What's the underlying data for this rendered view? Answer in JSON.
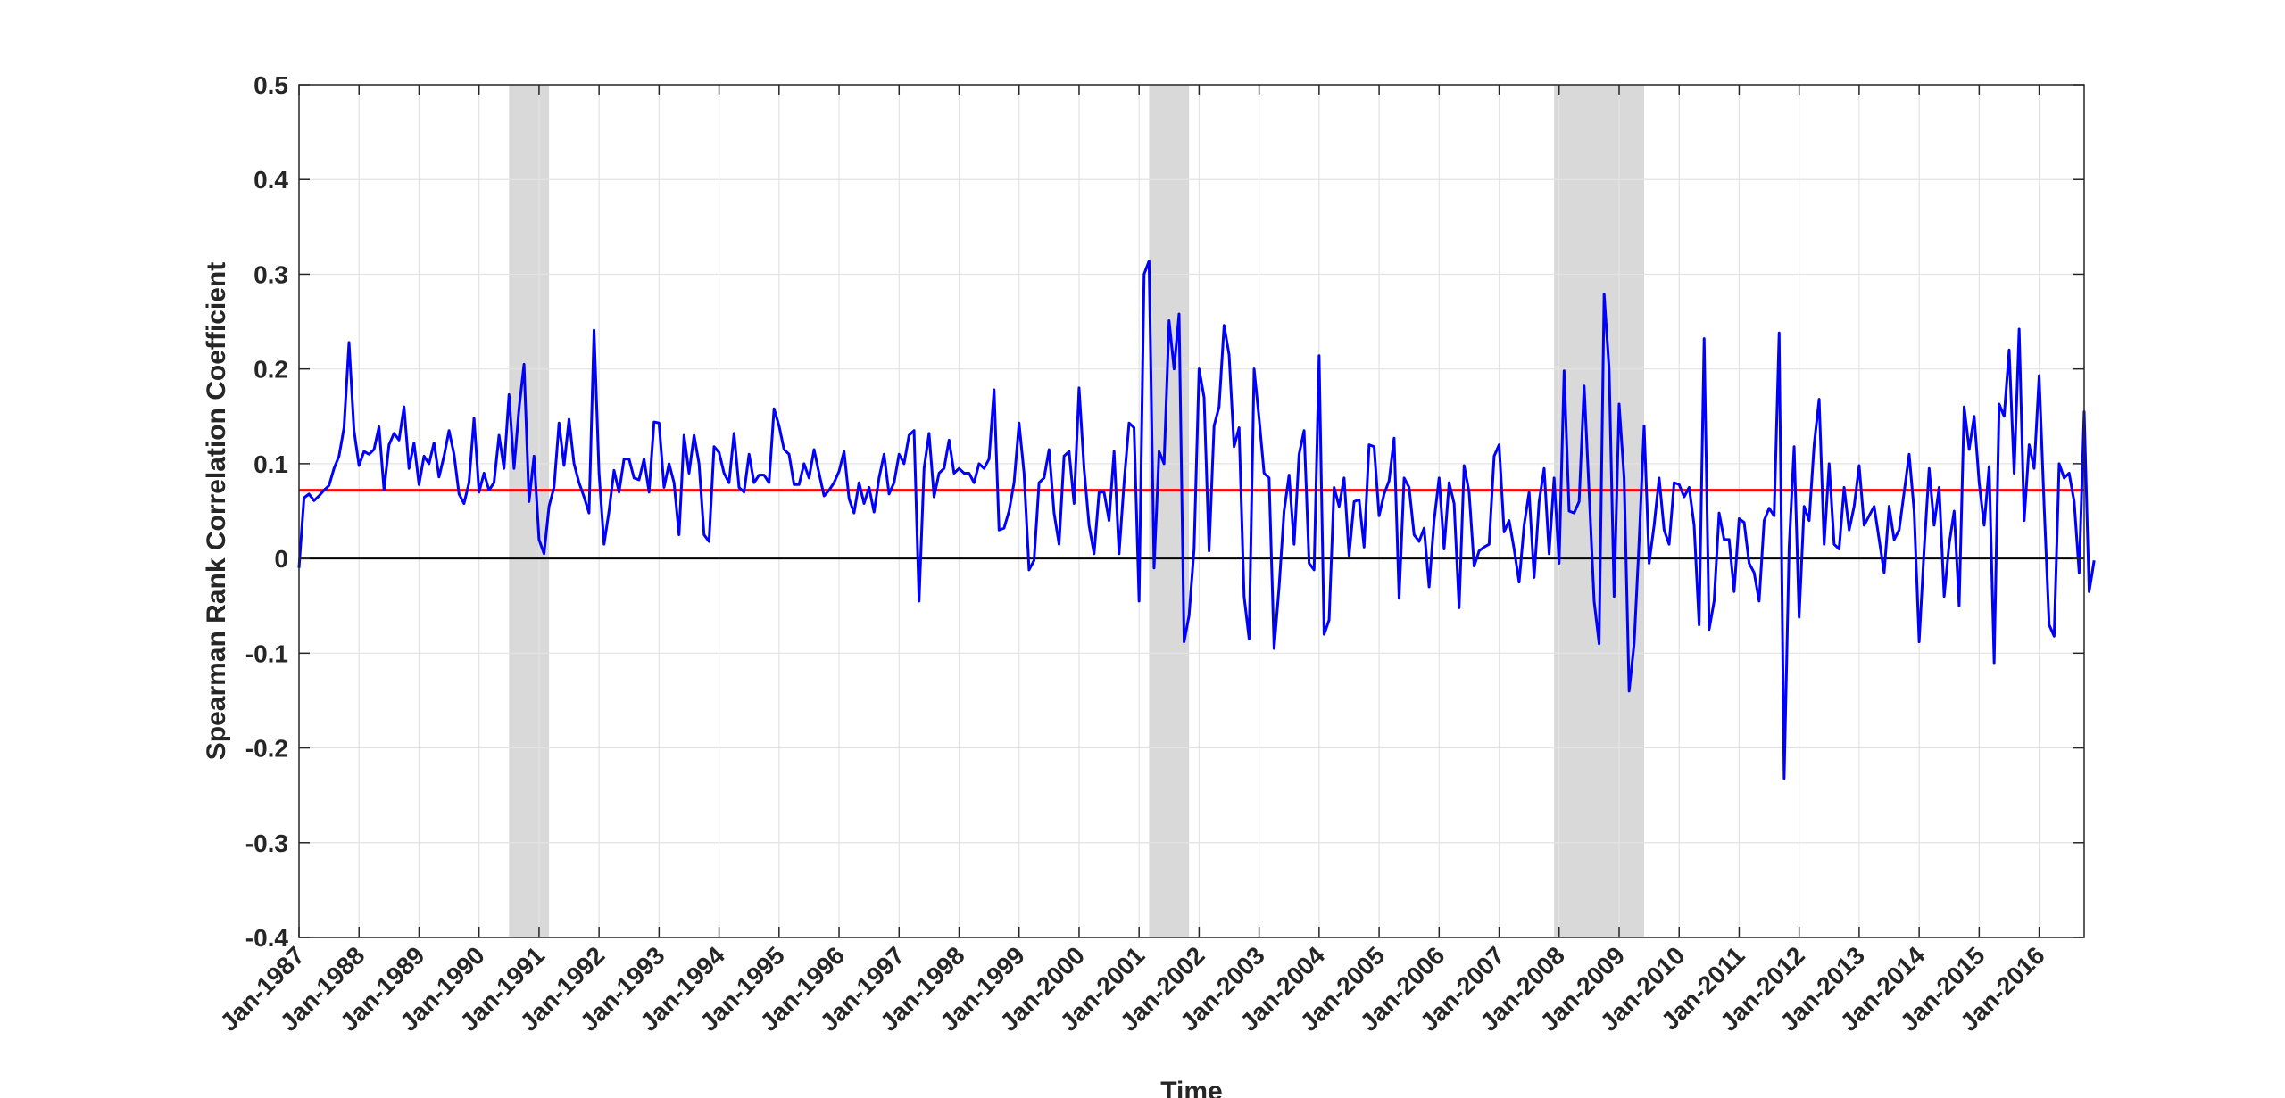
{
  "chart_data": {
    "type": "line",
    "title": "",
    "xlabel": "Time",
    "ylabel": "Spearman Rank Correlation Coefficient",
    "ylim": [
      -0.4,
      0.5
    ],
    "yticks": [
      -0.4,
      -0.3,
      -0.2,
      -0.1,
      0,
      0.1,
      0.2,
      0.3,
      0.4,
      0.5
    ],
    "ytick_labels": [
      "-0.4",
      "-0.3",
      "-0.2",
      "-0.1",
      "0",
      "0.1",
      "0.2",
      "0.3",
      "0.4",
      "0.5"
    ],
    "xlim": [
      "1987-01",
      "2016-10"
    ],
    "xticks": [
      "1987-01",
      "1988-01",
      "1989-01",
      "1990-01",
      "1991-01",
      "1992-01",
      "1993-01",
      "1994-01",
      "1995-01",
      "1996-01",
      "1997-01",
      "1998-01",
      "1999-01",
      "2000-01",
      "2001-01",
      "2002-01",
      "2003-01",
      "2004-01",
      "2005-01",
      "2006-01",
      "2007-01",
      "2008-01",
      "2009-01",
      "2010-01",
      "2011-01",
      "2012-01",
      "2013-01",
      "2014-01",
      "2015-01",
      "2016-01"
    ],
    "xtick_labels": [
      "Jan-1987",
      "Jan-1988",
      "Jan-1989",
      "Jan-1990",
      "Jan-1991",
      "Jan-1992",
      "Jan-1993",
      "Jan-1994",
      "Jan-1995",
      "Jan-1996",
      "Jan-1997",
      "Jan-1998",
      "Jan-1999",
      "Jan-2000",
      "Jan-2001",
      "Jan-2002",
      "Jan-2003",
      "Jan-2004",
      "Jan-2005",
      "Jan-2006",
      "Jan-2007",
      "Jan-2008",
      "Jan-2009",
      "Jan-2010",
      "Jan-2011",
      "Jan-2012",
      "Jan-2013",
      "Jan-2014",
      "Jan-2015",
      "Jan-2016"
    ],
    "grid": true,
    "shaded_periods": [
      {
        "start": "1990-07",
        "end": "1991-03"
      },
      {
        "start": "2001-03",
        "end": "2001-11"
      },
      {
        "start": "2007-12",
        "end": "2009-06"
      }
    ],
    "horizontal_lines": [
      {
        "y": 0.072,
        "color": "#ff0000"
      },
      {
        "y": 0,
        "color": "#000000"
      }
    ],
    "series": [
      {
        "color": "#0000ff",
        "x_start": "1987-01",
        "frequency": "monthly",
        "values": [
          -0.01,
          0.064,
          0.068,
          0.061,
          0.066,
          0.072,
          0.077,
          0.095,
          0.108,
          0.138,
          0.228,
          0.135,
          0.098,
          0.113,
          0.11,
          0.115,
          0.139,
          0.072,
          0.12,
          0.132,
          0.125,
          0.16,
          0.095,
          0.122,
          0.078,
          0.108,
          0.1,
          0.122,
          0.086,
          0.108,
          0.135,
          0.11,
          0.068,
          0.058,
          0.08,
          0.148,
          0.07,
          0.09,
          0.072,
          0.08,
          0.13,
          0.095,
          0.173,
          0.095,
          0.158,
          0.205,
          0.06,
          0.108,
          0.02,
          0.005,
          0.055,
          0.075,
          0.143,
          0.098,
          0.147,
          0.1,
          0.08,
          0.065,
          0.048,
          0.241,
          0.09,
          0.015,
          0.05,
          0.093,
          0.07,
          0.105,
          0.105,
          0.085,
          0.083,
          0.105,
          0.07,
          0.144,
          0.143,
          0.075,
          0.1,
          0.08,
          0.025,
          0.13,
          0.09,
          0.13,
          0.1,
          0.025,
          0.018,
          0.118,
          0.112,
          0.09,
          0.08,
          0.132,
          0.075,
          0.07,
          0.11,
          0.08,
          0.088,
          0.088,
          0.08,
          0.158,
          0.14,
          0.115,
          0.11,
          0.078,
          0.078,
          0.1,
          0.085,
          0.115,
          0.09,
          0.066,
          0.072,
          0.08,
          0.092,
          0.113,
          0.063,
          0.048,
          0.08,
          0.058,
          0.075,
          0.049,
          0.085,
          0.11,
          0.068,
          0.08,
          0.11,
          0.1,
          0.13,
          0.135,
          -0.045,
          0.095,
          0.132,
          0.065,
          0.09,
          0.095,
          0.125,
          0.09,
          0.095,
          0.09,
          0.09,
          0.08,
          0.1,
          0.095,
          0.105,
          0.178,
          0.03,
          0.032,
          0.05,
          0.08,
          0.143,
          0.09,
          -0.012,
          -0.002,
          0.08,
          0.085,
          0.115,
          0.048,
          0.015,
          0.108,
          0.113,
          0.058,
          0.18,
          0.095,
          0.035,
          0.005,
          0.07,
          0.07,
          0.04,
          0.113,
          0.005,
          0.08,
          0.143,
          0.138,
          -0.045,
          0.3,
          0.314,
          -0.01,
          0.113,
          0.1,
          0.251,
          0.2,
          0.258,
          -0.088,
          -0.06,
          0.01,
          0.2,
          0.17,
          0.008,
          0.14,
          0.16,
          0.246,
          0.215,
          0.118,
          0.138,
          -0.04,
          -0.085,
          0.2,
          0.148,
          0.09,
          0.085,
          -0.095,
          -0.03,
          0.05,
          0.088,
          0.015,
          0.11,
          0.135,
          -0.005,
          -0.012,
          0.214,
          -0.08,
          -0.065,
          0.075,
          0.055,
          0.085,
          0.003,
          0.06,
          0.062,
          0.012,
          0.12,
          0.118,
          0.045,
          0.068,
          0.082,
          0.127,
          -0.042,
          0.085,
          0.075,
          0.025,
          0.018,
          0.032,
          -0.03,
          0.04,
          0.085,
          0.01,
          0.08,
          0.058,
          -0.052,
          0.098,
          0.07,
          -0.008,
          0.008,
          0.012,
          0.015,
          0.108,
          0.12,
          0.028,
          0.04,
          0.01,
          -0.025,
          0.035,
          0.07,
          -0.02,
          0.06,
          0.095,
          0.005,
          0.085,
          -0.005,
          0.198,
          0.05,
          0.048,
          0.06,
          0.182,
          0.07,
          -0.045,
          -0.09,
          0.279,
          0.2,
          -0.04,
          0.163,
          0.085,
          -0.14,
          -0.09,
          0.018,
          0.14,
          -0.005,
          0.035,
          0.085,
          0.03,
          0.015,
          0.08,
          0.078,
          0.065,
          0.075,
          0.035,
          -0.07,
          0.232,
          -0.075,
          -0.045,
          0.048,
          0.02,
          0.02,
          -0.035,
          0.042,
          0.038,
          -0.005,
          -0.015,
          -0.045,
          0.04,
          0.053,
          0.045,
          0.238,
          -0.232,
          0.012,
          0.118,
          -0.062,
          0.055,
          0.04,
          0.12,
          0.168,
          0.015,
          0.1,
          0.015,
          0.01,
          0.075,
          0.03,
          0.055,
          0.098,
          0.035,
          0.045,
          0.055,
          0.02,
          -0.015,
          0.055,
          0.02,
          0.03,
          0.07,
          0.11,
          0.05,
          -0.088,
          0.01,
          0.095,
          0.035,
          0.075,
          -0.04,
          0.015,
          0.05,
          -0.05,
          0.16,
          0.115,
          0.15,
          0.08,
          0.035,
          0.097,
          -0.11,
          0.163,
          0.15,
          0.22,
          0.09,
          0.242,
          0.04,
          0.12,
          0.095,
          0.193,
          0.055,
          -0.07,
          -0.082,
          0.1,
          0.085,
          0.09,
          0.06,
          -0.015,
          0.155,
          -0.035,
          -0.002
        ]
      }
    ]
  },
  "colors": {
    "series": "#0000ff",
    "mean_line": "#ff0000",
    "zero_line": "#000000",
    "shading": "#d9d9d9",
    "grid": "#e3e3e3",
    "axis": "#262626"
  }
}
